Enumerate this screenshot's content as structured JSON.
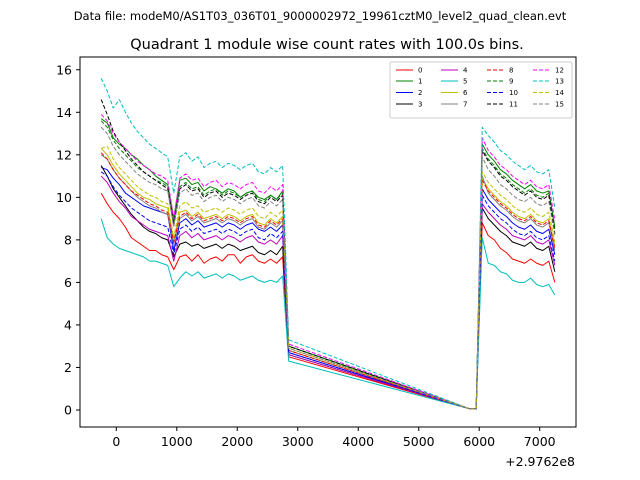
{
  "chart_data": {
    "type": "line",
    "suptitle": "Data file: modeM0/AS1T03_036T01_9000002972_19961cztM0_level2_quad_clean.evt",
    "title": "Quadrant 1 module wise count rates with 100.0s bins.",
    "xlabel": "",
    "ylabel": "",
    "x_offset_label": "+2.9762e8",
    "xlim": [
      -600,
      7600
    ],
    "ylim": [
      -0.8,
      16.6
    ],
    "xticks": [
      0,
      1000,
      2000,
      3000,
      4000,
      5000,
      6000,
      7000
    ],
    "yticks": [
      0,
      2,
      4,
      6,
      8,
      10,
      12,
      14,
      16
    ],
    "legend_location": "upper right",
    "x": [
      -250,
      -150,
      -50,
      50,
      150,
      250,
      350,
      450,
      550,
      650,
      750,
      850,
      950,
      1050,
      1150,
      1250,
      1350,
      1450,
      1550,
      1650,
      1750,
      1850,
      1950,
      2050,
      2150,
      2250,
      2350,
      2450,
      2550,
      2650,
      2750,
      2850,
      5850,
      5950,
      6050,
      6150,
      6250,
      6350,
      6450,
      6550,
      6650,
      6750,
      6850,
      6950,
      7050,
      7150,
      7250
    ],
    "series": [
      {
        "name": "0",
        "color": "#ff0000",
        "dashed": false,
        "values": [
          10.2,
          9.7,
          9.3,
          9.0,
          8.6,
          8.1,
          7.9,
          7.7,
          7.5,
          7.5,
          7.3,
          7.2,
          6.6,
          7.2,
          7.3,
          7.0,
          7.3,
          6.9,
          7.1,
          7.2,
          7.0,
          7.3,
          7.3,
          6.9,
          7.2,
          7.3,
          7.0,
          6.9,
          7.1,
          6.9,
          7.2,
          2.5,
          0.05,
          0.05,
          8.8,
          8.2,
          8.0,
          7.6,
          7.4,
          7.1,
          7.0,
          6.9,
          7.1,
          6.9,
          6.8,
          7.0,
          6.0
        ]
      },
      {
        "name": "1",
        "color": "#008000",
        "dashed": false,
        "values": [
          13.7,
          13.5,
          12.8,
          12.5,
          12.3,
          12.0,
          11.8,
          11.5,
          11.3,
          11.0,
          10.8,
          10.6,
          9.0,
          10.8,
          10.9,
          10.6,
          10.7,
          10.3,
          10.5,
          10.4,
          10.2,
          10.4,
          10.3,
          10.0,
          10.2,
          10.3,
          10.0,
          9.9,
          10.1,
          9.9,
          10.3,
          3.0,
          0.05,
          0.05,
          12.5,
          12.0,
          11.7,
          11.3,
          11.1,
          10.8,
          10.6,
          10.4,
          10.6,
          10.3,
          10.2,
          10.3,
          8.6
        ]
      },
      {
        "name": "2",
        "color": "#0000ff",
        "dashed": false,
        "values": [
          11.4,
          11.3,
          10.9,
          10.6,
          10.2,
          10.0,
          9.8,
          9.6,
          9.5,
          9.4,
          9.3,
          9.2,
          7.5,
          8.8,
          9.0,
          8.7,
          8.9,
          8.6,
          8.7,
          8.8,
          8.6,
          8.8,
          8.7,
          8.5,
          8.7,
          8.8,
          8.5,
          8.4,
          8.6,
          8.4,
          8.7,
          2.7,
          0.05,
          0.05,
          10.4,
          9.9,
          9.6,
          9.3,
          9.1,
          8.8,
          8.6,
          8.5,
          8.7,
          8.4,
          8.3,
          8.5,
          7.3
        ]
      },
      {
        "name": "3",
        "color": "#000000",
        "dashed": false,
        "values": [
          11.5,
          11.0,
          10.4,
          10.0,
          9.6,
          9.2,
          8.9,
          8.6,
          8.4,
          8.3,
          8.1,
          8.0,
          7.2,
          7.8,
          7.9,
          7.7,
          7.8,
          7.6,
          7.7,
          7.8,
          7.6,
          7.8,
          7.7,
          7.5,
          7.6,
          7.7,
          7.4,
          7.3,
          7.5,
          7.3,
          7.7,
          2.6,
          0.05,
          0.05,
          9.5,
          9.0,
          8.7,
          8.4,
          8.2,
          7.9,
          7.8,
          7.7,
          7.9,
          7.6,
          7.5,
          7.7,
          6.5
        ]
      },
      {
        "name": "4",
        "color": "#bf00bf",
        "dashed": false,
        "values": [
          11.0,
          10.7,
          10.2,
          9.8,
          9.5,
          9.1,
          8.9,
          8.7,
          8.5,
          8.4,
          8.3,
          8.2,
          7.0,
          8.2,
          8.4,
          8.1,
          8.3,
          8.0,
          8.1,
          8.2,
          8.0,
          8.2,
          8.1,
          7.9,
          8.1,
          8.2,
          7.9,
          7.8,
          8.0,
          7.8,
          8.2,
          2.6,
          0.05,
          0.05,
          9.7,
          9.3,
          9.0,
          8.7,
          8.5,
          8.2,
          8.1,
          8.0,
          8.2,
          7.9,
          7.8,
          8.0,
          6.8
        ]
      },
      {
        "name": "5",
        "color": "#00bfbf",
        "dashed": false,
        "values": [
          9.0,
          8.1,
          7.8,
          7.6,
          7.5,
          7.4,
          7.3,
          7.2,
          7.0,
          7.0,
          6.9,
          6.8,
          5.8,
          6.2,
          6.5,
          6.3,
          6.5,
          6.2,
          6.3,
          6.4,
          6.2,
          6.4,
          6.3,
          6.1,
          6.2,
          6.3,
          6.1,
          6.0,
          6.1,
          6.0,
          6.3,
          2.3,
          0.05,
          0.05,
          8.1,
          6.9,
          6.8,
          6.5,
          6.4,
          6.1,
          6.0,
          6.0,
          6.2,
          5.9,
          5.8,
          5.9,
          5.4
        ]
      },
      {
        "name": "6",
        "color": "#bfbf00",
        "dashed": false,
        "values": [
          12.3,
          12.0,
          11.5,
          11.1,
          10.8,
          10.5,
          10.2,
          10.0,
          9.9,
          9.7,
          9.6,
          9.5,
          8.0,
          9.3,
          9.4,
          9.1,
          9.3,
          9.0,
          9.1,
          9.2,
          9.0,
          9.2,
          9.1,
          8.9,
          9.1,
          9.2,
          8.8,
          8.7,
          9.0,
          8.8,
          9.1,
          2.8,
          0.05,
          0.05,
          10.9,
          10.4,
          10.1,
          9.8,
          9.6,
          9.3,
          9.1,
          9.0,
          9.2,
          8.9,
          8.8,
          9.0,
          7.7
        ]
      },
      {
        "name": "7",
        "color": "#808080",
        "dashed": false,
        "values": [
          12.0,
          11.8,
          11.3,
          10.9,
          10.6,
          10.3,
          10.0,
          9.8,
          9.6,
          9.5,
          9.3,
          9.2,
          7.8,
          9.0,
          9.2,
          8.9,
          9.1,
          8.8,
          8.9,
          9.0,
          8.8,
          9.0,
          8.9,
          8.7,
          8.9,
          9.0,
          8.6,
          8.5,
          8.8,
          8.6,
          8.9,
          2.8,
          0.05,
          0.05,
          11.0,
          10.2,
          9.9,
          9.6,
          9.4,
          9.1,
          8.9,
          8.8,
          9.0,
          8.7,
          8.6,
          8.8,
          7.5
        ]
      },
      {
        "name": "8",
        "color": "#ff0000",
        "dashed": true,
        "values": [
          12.1,
          11.8,
          11.3,
          10.9,
          10.6,
          10.3,
          10.1,
          9.9,
          9.7,
          9.6,
          9.4,
          9.3,
          7.9,
          9.1,
          9.3,
          9.0,
          9.2,
          8.9,
          9.0,
          9.1,
          8.9,
          9.1,
          9.0,
          8.8,
          9.0,
          9.1,
          8.7,
          8.6,
          8.9,
          8.7,
          9.0,
          2.8,
          0.05,
          0.05,
          10.8,
          10.3,
          10.0,
          9.7,
          9.5,
          9.2,
          9.0,
          8.9,
          9.1,
          8.8,
          8.7,
          8.9,
          7.6
        ]
      },
      {
        "name": "9",
        "color": "#008000",
        "dashed": true,
        "values": [
          13.6,
          13.3,
          12.7,
          12.3,
          12.0,
          11.7,
          11.4,
          11.2,
          11.0,
          10.8,
          10.7,
          10.5,
          8.8,
          10.5,
          10.7,
          10.4,
          10.5,
          10.1,
          10.3,
          10.4,
          10.1,
          10.3,
          10.2,
          10.0,
          10.2,
          10.3,
          9.9,
          9.8,
          10.1,
          9.9,
          10.2,
          3.0,
          0.05,
          0.05,
          12.3,
          11.8,
          11.5,
          11.1,
          10.9,
          10.6,
          10.4,
          10.2,
          10.4,
          10.1,
          10.0,
          10.2,
          8.5
        ]
      },
      {
        "name": "10",
        "color": "#0000ff",
        "dashed": true,
        "values": [
          11.2,
          11.0,
          10.5,
          10.1,
          9.8,
          9.5,
          9.3,
          9.1,
          8.9,
          8.8,
          8.7,
          8.6,
          7.3,
          8.5,
          8.7,
          8.4,
          8.6,
          8.3,
          8.4,
          8.5,
          8.3,
          8.5,
          8.4,
          8.2,
          8.4,
          8.5,
          8.1,
          8.0,
          8.3,
          8.1,
          8.4,
          2.7,
          0.05,
          0.05,
          10.1,
          9.6,
          9.3,
          9.0,
          8.8,
          8.5,
          8.3,
          8.2,
          8.4,
          8.1,
          8.0,
          8.2,
          7.0
        ]
      },
      {
        "name": "11",
        "color": "#000000",
        "dashed": true,
        "values": [
          14.6,
          13.9,
          13.1,
          12.6,
          12.2,
          11.8,
          11.5,
          11.2,
          11.0,
          10.8,
          10.6,
          10.4,
          8.7,
          10.4,
          10.6,
          10.3,
          10.4,
          10.0,
          10.2,
          10.3,
          10.0,
          10.2,
          10.1,
          9.9,
          10.1,
          10.2,
          9.8,
          9.7,
          10.0,
          9.8,
          10.1,
          3.0,
          0.05,
          0.05,
          12.2,
          11.7,
          11.4,
          11.0,
          10.8,
          10.5,
          10.3,
          10.1,
          10.3,
          10.0,
          9.9,
          10.1,
          8.3
        ]
      },
      {
        "name": "12",
        "color": "#ff00ff",
        "dashed": true,
        "values": [
          13.9,
          13.6,
          13.0,
          12.6,
          12.3,
          12.0,
          11.7,
          11.5,
          11.3,
          11.1,
          11.0,
          10.8,
          9.0,
          10.9,
          11.1,
          10.8,
          10.9,
          10.5,
          10.7,
          10.8,
          10.5,
          10.7,
          10.6,
          10.4,
          10.6,
          10.7,
          10.3,
          10.2,
          10.5,
          10.3,
          10.6,
          3.1,
          0.05,
          0.05,
          12.8,
          12.2,
          11.9,
          11.5,
          11.3,
          11.0,
          10.8,
          10.6,
          10.8,
          10.5,
          10.4,
          10.6,
          8.9
        ]
      },
      {
        "name": "13",
        "color": "#00bfbf",
        "dashed": true,
        "values": [
          15.6,
          15.0,
          14.2,
          14.6,
          14.0,
          13.5,
          13.1,
          12.8,
          12.5,
          12.3,
          12.1,
          11.9,
          10.2,
          11.9,
          12.1,
          11.7,
          11.9,
          11.4,
          11.6,
          11.7,
          11.4,
          11.6,
          11.5,
          11.3,
          11.5,
          11.6,
          11.2,
          11.1,
          11.4,
          11.2,
          11.5,
          3.3,
          0.05,
          0.05,
          13.3,
          12.9,
          12.6,
          12.2,
          12.0,
          11.7,
          11.5,
          11.3,
          11.5,
          11.2,
          11.1,
          11.3,
          9.5
        ]
      },
      {
        "name": "14",
        "color": "#bfbf00",
        "dashed": true,
        "values": [
          12.3,
          12.4,
          11.8,
          11.4,
          11.1,
          10.8,
          10.5,
          10.3,
          10.1,
          10.0,
          9.8,
          9.7,
          8.1,
          9.6,
          9.8,
          9.5,
          9.6,
          9.3,
          9.4,
          9.5,
          9.3,
          9.5,
          9.4,
          9.2,
          9.4,
          9.5,
          9.1,
          9.0,
          9.3,
          9.1,
          9.4,
          2.9,
          0.05,
          0.05,
          11.2,
          10.7,
          10.4,
          10.1,
          9.9,
          9.6,
          9.4,
          9.3,
          9.5,
          9.2,
          9.1,
          9.3,
          7.9
        ]
      },
      {
        "name": "15",
        "color": "#808080",
        "dashed": true,
        "values": [
          13.3,
          13.0,
          12.4,
          12.0,
          11.7,
          11.4,
          11.1,
          10.9,
          10.7,
          10.6,
          10.4,
          10.3,
          8.6,
          10.2,
          10.4,
          10.1,
          10.2,
          9.8,
          10.0,
          10.1,
          9.8,
          10.0,
          9.9,
          9.7,
          9.9,
          10.0,
          9.6,
          9.5,
          9.8,
          9.6,
          9.9,
          2.9,
          0.05,
          0.05,
          11.9,
          11.3,
          11.0,
          10.6,
          10.4,
          10.1,
          9.9,
          9.8,
          10.0,
          9.7,
          9.6,
          9.8,
          8.2
        ]
      }
    ]
  }
}
